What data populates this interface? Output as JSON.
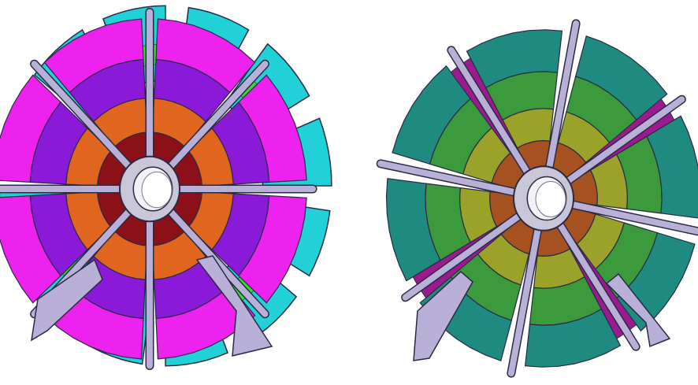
{
  "figure": {
    "wheels": [
      {
        "id": "left",
        "colors": {
          "ring_inner": "#8b1018",
          "ring_2": "#e0651e",
          "ring_3": "#8a1ad8",
          "ring_4": "#ee22ee",
          "back_chamber": "#22d0d8",
          "back_accent": "#33dd33",
          "spoke": "#b8b0d6",
          "frame_edge": "#2a2a44",
          "hub": "#c8c6d8"
        }
      },
      {
        "id": "right",
        "colors": {
          "ring_inner": "#a55220",
          "ring_2": "#9aa22a",
          "ring_3": "#3a9a3c",
          "ring_4": "#1f8a80",
          "gap_chamber": "#9b1a8e",
          "spoke": "#b8b0d6",
          "frame_edge": "#2a2a44",
          "hub": "#c8c6d8"
        }
      }
    ]
  }
}
